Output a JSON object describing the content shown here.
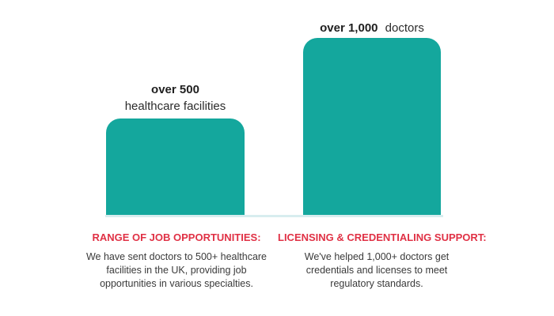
{
  "chart_data": {
    "type": "bar",
    "title": "",
    "categories": [
      "healthcare facilities",
      "doctors"
    ],
    "values": [
      500,
      1000
    ],
    "bar_color": "#14A79D",
    "baseline_color": "#D8EDEF",
    "legend": "none",
    "grid": false,
    "bars": [
      {
        "value": 500,
        "label_bold": "over 500",
        "label_regular": "healthcare facilities"
      },
      {
        "value": 1000,
        "label_bold": "over 1,000",
        "label_regular": "doctors"
      }
    ]
  },
  "captions": [
    {
      "heading": "RANGE OF JOB OPPORTUNITIES:",
      "lines": [
        "We have sent doctors to 500+ healthcare",
        "facilities in the UK, providing job",
        "opportunities in various specialties."
      ]
    },
    {
      "heading": "LICENSING & CREDENTIALING SUPPORT:",
      "lines": [
        "We've helped 1,000+ doctors get",
        "credentials and licenses to meet",
        "regulatory standards."
      ]
    }
  ],
  "colors": {
    "accent_teal": "#14A79D",
    "heading_red": "#E03145",
    "label_dark": "#1f1f1f",
    "body_text": "#3A3A3A"
  }
}
